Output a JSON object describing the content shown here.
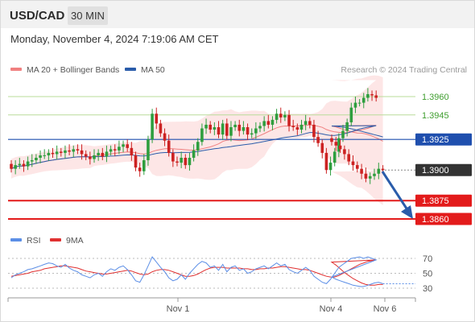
{
  "header": {
    "symbol": "USD/CAD",
    "timeframe": "30 MIN",
    "datetime": "Monday, November 4, 2024 7:19:06 AM CET"
  },
  "legend": {
    "ma20_label": "MA 20 + Bollinger Bands",
    "ma50_label": "MA 50",
    "credit": "Research © 2024 Trading Central",
    "rsi_label": "RSI",
    "ma9_label": "9MA"
  },
  "colors": {
    "up_candle": "#2e9e3e",
    "down_candle": "#cc2222",
    "bollinger_fill": "#fde3e3",
    "ma20": "#f08080",
    "ma50": "#2a5caa",
    "resistance": "#b9dc9a",
    "support": "#e31b1b",
    "pivot": "#1f4fae",
    "last_price": "#333333",
    "rsi": "#5b8ee6",
    "rsi_ma": "#e03030",
    "arrow": "#2a5caa"
  },
  "chart_data": {
    "type": "candlestick",
    "x_axis": {
      "labels": [
        "Nov 1",
        "Nov 4",
        "Nov 6"
      ]
    },
    "y_range": [
      1.3855,
      1.397
    ],
    "levels": [
      {
        "label": "1.3960",
        "value": 1.396,
        "kind": "resistance"
      },
      {
        "label": "1.3945",
        "value": 1.3945,
        "kind": "resistance"
      },
      {
        "label": "1.3925",
        "value": 1.3925,
        "kind": "pivot"
      },
      {
        "label": "1.3900",
        "value": 1.39,
        "kind": "last"
      },
      {
        "label": "1.3875",
        "value": 1.3875,
        "kind": "support"
      },
      {
        "label": "1.3860",
        "value": 1.386,
        "kind": "support"
      }
    ],
    "close": [
      1.3901,
      1.3904,
      1.3905,
      1.3903,
      1.3907,
      1.3908,
      1.391,
      1.3912,
      1.3912,
      1.3914,
      1.3913,
      1.3915,
      1.3914,
      1.3916,
      1.3915,
      1.3917,
      1.3916,
      1.3913,
      1.3911,
      1.3909,
      1.3912,
      1.3914,
      1.3911,
      1.3915,
      1.3917,
      1.3916,
      1.3919,
      1.3921,
      1.3918,
      1.3912,
      1.3902,
      1.3899,
      1.3908,
      1.3925,
      1.3946,
      1.3938,
      1.393,
      1.3924,
      1.3914,
      1.3907,
      1.3906,
      1.391,
      1.3904,
      1.391,
      1.3916,
      1.3923,
      1.3934,
      1.3937,
      1.3933,
      1.3935,
      1.3929,
      1.3938,
      1.3928,
      1.3935,
      1.3937,
      1.3932,
      1.3935,
      1.3929,
      1.393,
      1.3934,
      1.3936,
      1.394,
      1.3937,
      1.3941,
      1.3946,
      1.3943,
      1.3945,
      1.3936,
      1.3935,
      1.3933,
      1.3937,
      1.394,
      1.3937,
      1.3927,
      1.3922,
      1.3914,
      1.39,
      1.3906,
      1.3915,
      1.3926,
      1.3932,
      1.3939,
      1.3951,
      1.3955,
      1.3955,
      1.3959,
      1.3962,
      1.3961,
      1.3959
    ],
    "close_after_gap": [
      1.3923,
      1.392,
      1.3917,
      1.3913,
      1.3907,
      1.3904,
      1.3901,
      1.3897,
      1.3893,
      1.3895,
      1.3897,
      1.3901,
      1.39
    ],
    "rsi": {
      "axis": [
        30,
        50,
        70
      ],
      "values": [
        44,
        48,
        50,
        52,
        55,
        56,
        58,
        60,
        62,
        64,
        63,
        60,
        58,
        62,
        57,
        54,
        52,
        48,
        46,
        44,
        48,
        50,
        46,
        52,
        56,
        54,
        58,
        60,
        55,
        48,
        40,
        38,
        48,
        60,
        72,
        65,
        58,
        52,
        44,
        40,
        42,
        48,
        42,
        50,
        56,
        62,
        66,
        64,
        58,
        60,
        54,
        62,
        52,
        58,
        60,
        54,
        56,
        50,
        52,
        56,
        58,
        60,
        56,
        60,
        64,
        60,
        62,
        55,
        52,
        50,
        54,
        58,
        54,
        46,
        42,
        38,
        36,
        42,
        50,
        58,
        62,
        66,
        70,
        71,
        72,
        70,
        72,
        70,
        68,
        45,
        42,
        40,
        38,
        36,
        34,
        33,
        32,
        33,
        35,
        37,
        38,
        36
      ],
      "ma9": [
        46,
        47,
        48,
        49,
        50,
        52,
        53,
        54,
        56,
        57,
        58,
        59,
        60,
        60,
        59,
        58,
        57,
        55,
        53,
        52,
        51,
        50,
        49,
        49,
        50,
        51,
        52,
        53,
        54,
        53,
        51,
        49,
        48,
        49,
        52,
        54,
        55,
        55,
        54,
        52,
        50,
        48,
        46,
        46,
        47,
        49,
        52,
        55,
        57,
        58,
        58,
        58,
        57,
        57,
        57,
        57,
        56,
        56,
        55,
        55,
        56,
        56,
        57,
        57,
        58,
        59,
        59,
        58,
        57,
        56,
        55,
        55,
        54,
        52,
        50,
        48,
        46,
        45,
        45,
        47,
        50,
        53,
        56,
        59,
        62,
        64,
        66,
        67,
        68,
        65,
        61,
        56,
        51,
        47,
        43,
        40,
        37,
        35,
        34,
        34,
        35,
        35
      ]
    }
  }
}
